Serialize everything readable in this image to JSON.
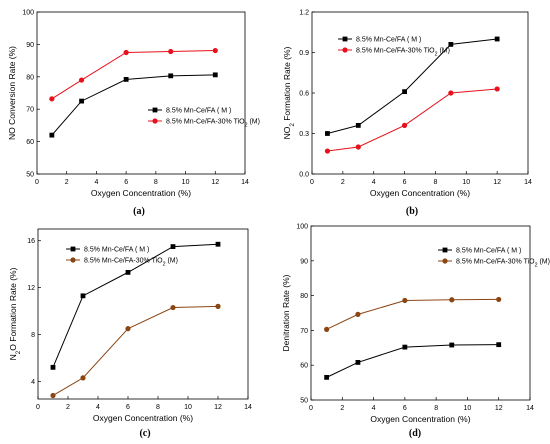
{
  "chart_data": [
    {
      "type": "line",
      "panel_label": "(a)",
      "xlabel": "Oxygen Concentration (%)",
      "ylabel": "NO Conversion Rate (%)",
      "ylabel_parts": [
        [
          "NO Conversion Rate (%)",
          ""
        ]
      ],
      "xlim": [
        0,
        14
      ],
      "ylim": [
        50,
        100
      ],
      "xticks": [
        0,
        2,
        4,
        6,
        8,
        10,
        12,
        14
      ],
      "yticks": [
        50,
        60,
        70,
        80,
        90,
        100
      ],
      "x": [
        1,
        3,
        6,
        9,
        12
      ],
      "legend_position": "lower-right",
      "series": [
        {
          "name": "8.5% Mn-Ce/FA ( M )",
          "name_parts": [
            [
              "8.5% Mn-Ce/FA ( M )",
              ""
            ]
          ],
          "color": "#000000",
          "marker": "square",
          "values": [
            62,
            72.5,
            79.2,
            80.3,
            80.6
          ]
        },
        {
          "name": "8.5% Mn-Ce/FA-30% TiO2 (M)",
          "name_parts": [
            [
              "8.5% Mn-Ce/FA-30% TiO",
              ""
            ],
            [
              "2",
              "sub"
            ],
            [
              " (M)",
              ""
            ]
          ],
          "color": "#e8101a",
          "marker": "circle",
          "values": [
            73.2,
            79,
            87.5,
            87.8,
            88.1
          ]
        }
      ]
    },
    {
      "type": "line",
      "panel_label": "(b)",
      "xlabel": "Oxygen Concentration (%)",
      "ylabel": "NO2 Formation Rate (%)",
      "ylabel_parts": [
        [
          "NO",
          ""
        ],
        [
          "2",
          "sub"
        ],
        [
          " Formation Rate (%)",
          ""
        ]
      ],
      "xlim": [
        0,
        14
      ],
      "ylim": [
        0,
        1.2
      ],
      "xticks": [
        0,
        2,
        4,
        6,
        8,
        10,
        12,
        14
      ],
      "yticks": [
        0.0,
        0.3,
        0.6,
        0.9,
        1.2
      ],
      "x": [
        1,
        3,
        6,
        9,
        12
      ],
      "legend_position": "upper-left",
      "series": [
        {
          "name": "8.5% Mn-Ce/FA ( M )",
          "name_parts": [
            [
              "8.5% Mn-Ce/FA ( M )",
              ""
            ]
          ],
          "color": "#000000",
          "marker": "square",
          "values": [
            0.3,
            0.36,
            0.61,
            0.96,
            1.0
          ]
        },
        {
          "name": "8.5% Mn-Ce/FA-30% TiO2 (M)",
          "name_parts": [
            [
              "8.5% Mn-Ce/FA-30% TiO",
              ""
            ],
            [
              "2",
              "sub"
            ],
            [
              " (M)",
              ""
            ]
          ],
          "color": "#e8101a",
          "marker": "circle",
          "values": [
            0.17,
            0.2,
            0.36,
            0.6,
            0.63
          ]
        }
      ]
    },
    {
      "type": "line",
      "panel_label": "(c)",
      "xlabel": "Oxygen Concentration (%)",
      "ylabel": "N2O Formation Rate (%)",
      "ylabel_parts": [
        [
          "N",
          ""
        ],
        [
          "2",
          "sub"
        ],
        [
          "O Formation Rate (%)",
          ""
        ]
      ],
      "xlim": [
        0,
        14
      ],
      "ylim": [
        2.5,
        17
      ],
      "xticks": [
        0,
        2,
        4,
        6,
        8,
        10,
        12,
        14
      ],
      "yticks": [
        4,
        8,
        12,
        16
      ],
      "x": [
        1,
        3,
        6,
        9,
        12
      ],
      "legend_position": "upper-left",
      "series": [
        {
          "name": "8.5% Mn-Ce/FA ( M )",
          "name_parts": [
            [
              "8.5% Mn-Ce/FA ( M )",
              ""
            ]
          ],
          "color": "#000000",
          "marker": "square",
          "values": [
            5.2,
            11.3,
            13.3,
            15.5,
            15.7
          ]
        },
        {
          "name": "8.5% Mn-Ce/FA-30% TiO2 (M)",
          "name_parts": [
            [
              "8.5% Mn-Ce/FA-30% TiO",
              ""
            ],
            [
              "2",
              "sub"
            ],
            [
              " (M)",
              ""
            ]
          ],
          "color": "#8b4513",
          "marker": "circle",
          "values": [
            2.8,
            4.3,
            8.5,
            10.3,
            10.4
          ]
        }
      ]
    },
    {
      "type": "line",
      "panel_label": "(d)",
      "xlabel": "Oxygen Concentration (%)",
      "ylabel": "Denitration Rate (%)",
      "ylabel_parts": [
        [
          "Denitration Rate (%)",
          ""
        ]
      ],
      "xlim": [
        0,
        14
      ],
      "ylim": [
        50,
        100
      ],
      "xticks": [
        0,
        2,
        4,
        6,
        8,
        10,
        12,
        14
      ],
      "yticks": [
        50,
        60,
        70,
        80,
        90,
        100
      ],
      "x": [
        1,
        3,
        6,
        9,
        12
      ],
      "legend_position": "upper-right",
      "series": [
        {
          "name": "8.5% Mn-Ce/FA ( M )",
          "name_parts": [
            [
              "8.5% Mn-Ce/FA ( M )",
              ""
            ]
          ],
          "color": "#000000",
          "marker": "square",
          "values": [
            56.5,
            60.8,
            65.2,
            65.8,
            65.9
          ]
        },
        {
          "name": "8.5% Mn-Ce/FA-30% TiO2 (M)",
          "name_parts": [
            [
              "8.5% Mn-Ce/FA-30% TiO",
              ""
            ],
            [
              "2",
              "sub"
            ],
            [
              " (M)",
              ""
            ]
          ],
          "color": "#8b4513",
          "marker": "circle",
          "values": [
            70.3,
            74.6,
            78.6,
            78.8,
            78.9
          ]
        }
      ]
    }
  ]
}
